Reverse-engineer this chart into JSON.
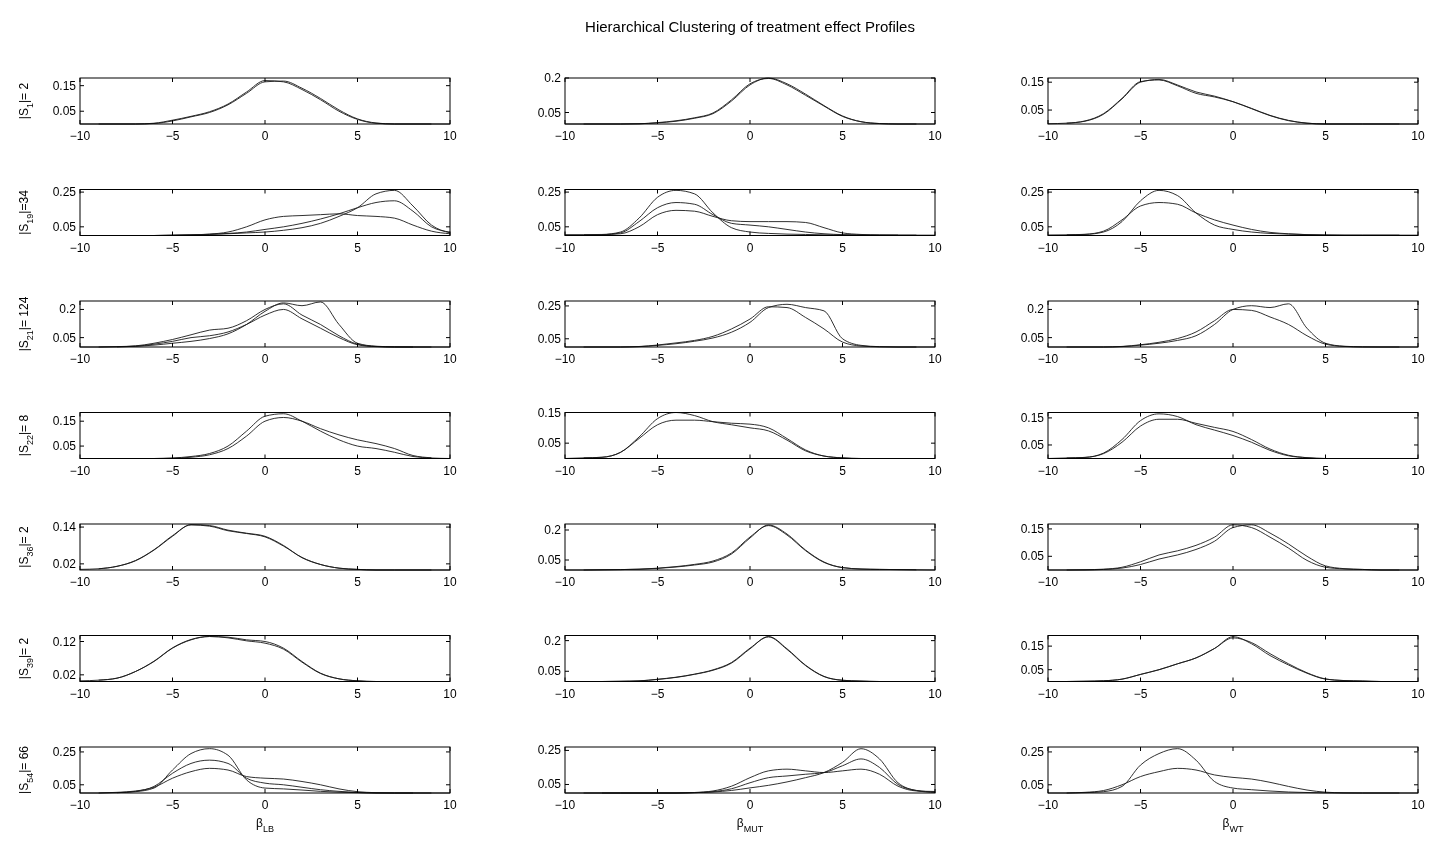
{
  "chart_data": [
    {
      "type": "line",
      "ylabel": "|S$_{1}$|= 2",
      "x": [
        -10,
        -9,
        -8,
        -7,
        -6,
        -5,
        -4,
        -3,
        -2,
        -1,
        0,
        1,
        2,
        3,
        4,
        5,
        6,
        7,
        8,
        9,
        10
      ],
      "xlim": [
        -10,
        10
      ],
      "xticks": [
        -10,
        -5,
        0,
        5,
        10
      ],
      "ylim": [
        0,
        0.18
      ],
      "yticks": [
        0.05,
        0.15
      ],
      "series": [
        {
          "color": "#1a1a1a",
          "values": [
            0,
            0,
            0,
            0,
            0.002,
            0.012,
            0.028,
            0.045,
            0.075,
            0.12,
            0.165,
            0.168,
            0.14,
            0.1,
            0.055,
            0.02,
            0.004,
            0,
            0,
            0,
            0
          ]
        },
        {
          "color": "#1a1a1a",
          "values": [
            null,
            0,
            0,
            0,
            0.003,
            0.015,
            0.03,
            0.048,
            0.078,
            0.125,
            0.17,
            0.165,
            0.135,
            0.095,
            0.05,
            0.018,
            0.003,
            0,
            0,
            0,
            null
          ]
        }
      ]
    },
    {
      "type": "line",
      "title": "Hierarchical Clustering of treatment effect Profiles",
      "x": [
        -10,
        -9,
        -8,
        -7,
        -6,
        -5,
        -4,
        -3,
        -2,
        -1,
        0,
        1,
        2,
        3,
        4,
        5,
        6,
        7,
        8,
        9,
        10
      ],
      "xlim": [
        -10,
        10
      ],
      "xticks": [
        -10,
        -5,
        0,
        5,
        10
      ],
      "ylim": [
        0,
        0.2
      ],
      "yticks": [
        0.05,
        0.2
      ],
      "series": [
        {
          "color": "#1a1a1a",
          "values": [
            0,
            0,
            0,
            0,
            0.001,
            0.005,
            0.012,
            0.025,
            0.045,
            0.1,
            0.17,
            0.2,
            0.175,
            0.13,
            0.08,
            0.035,
            0.01,
            0.002,
            0,
            0,
            0
          ]
        },
        {
          "color": "#1a1a1a",
          "values": [
            null,
            0,
            0,
            0,
            0.001,
            0.006,
            0.014,
            0.027,
            0.048,
            0.105,
            0.175,
            0.198,
            0.17,
            0.125,
            0.078,
            0.033,
            0.01,
            0.002,
            0,
            0,
            null
          ]
        }
      ]
    },
    {
      "type": "line",
      "x": [
        -10,
        -9,
        -8,
        -7,
        -6,
        -5,
        -4,
        -3,
        -2,
        -1,
        0,
        1,
        2,
        3,
        4,
        5,
        6,
        7,
        8,
        9,
        10
      ],
      "xlim": [
        -10,
        10
      ],
      "xticks": [
        -10,
        -5,
        0,
        5,
        10
      ],
      "ylim": [
        0,
        0.165
      ],
      "yticks": [
        0.05,
        0.15
      ],
      "series": [
        {
          "color": "#1a1a1a",
          "values": [
            0.001,
            0.003,
            0.01,
            0.035,
            0.09,
            0.15,
            0.16,
            0.14,
            0.115,
            0.1,
            0.08,
            0.055,
            0.03,
            0.012,
            0.003,
            0,
            0,
            0,
            0,
            0,
            0
          ]
        },
        {
          "color": "#1a1a1a",
          "values": [
            null,
            0.003,
            0.011,
            0.037,
            0.092,
            0.152,
            0.158,
            0.137,
            0.11,
            0.097,
            0.08,
            0.056,
            0.031,
            0.013,
            0.003,
            0,
            0,
            0,
            0,
            0,
            null
          ]
        }
      ]
    },
    {
      "type": "line",
      "ylabel": "|S$_{19}$|=34",
      "x": [
        -10,
        -9,
        -8,
        -7,
        -6,
        -5,
        -4,
        -3,
        -2,
        -1,
        0,
        1,
        2,
        3,
        4,
        5,
        6,
        7,
        8,
        9,
        10
      ],
      "xlim": [
        -10,
        10
      ],
      "xticks": [
        -10,
        -5,
        0,
        5,
        10
      ],
      "ylim": [
        0,
        0.265
      ],
      "yticks": [
        0.05,
        0.25
      ],
      "series": [
        {
          "color": "#1a1a1a",
          "values": [
            0,
            0,
            0,
            0,
            0,
            0.001,
            0.003,
            0.006,
            0.01,
            0.015,
            0.02,
            0.03,
            0.045,
            0.07,
            0.11,
            0.16,
            0.24,
            0.26,
            0.17,
            0.06,
            0.015
          ]
        },
        {
          "color": "#1a1a1a",
          "values": [
            null,
            0,
            0,
            0,
            0,
            0.001,
            0.003,
            0.007,
            0.012,
            0.02,
            0.035,
            0.05,
            0.07,
            0.095,
            0.125,
            0.16,
            0.19,
            0.2,
            0.14,
            0.05,
            0.02
          ]
        },
        {
          "color": "#1a1a1a",
          "values": [
            null,
            null,
            0,
            0,
            0,
            0.002,
            0.004,
            0.008,
            0.02,
            0.05,
            0.09,
            0.11,
            0.115,
            0.12,
            0.125,
            0.115,
            0.11,
            0.1,
            0.06,
            0.025,
            0.01
          ]
        }
      ]
    },
    {
      "type": "line",
      "x": [
        -10,
        -9,
        -8,
        -7,
        -6,
        -5,
        -4,
        -3,
        -2,
        -1,
        0,
        1,
        2,
        3,
        4,
        5,
        6,
        7,
        8,
        9,
        10
      ],
      "xlim": [
        -10,
        10
      ],
      "xticks": [
        -10,
        -5,
        0,
        5,
        10
      ],
      "ylim": [
        0,
        0.265
      ],
      "yticks": [
        0.05,
        0.25
      ],
      "series": [
        {
          "color": "#1a1a1a",
          "values": [
            0.005,
            0.005,
            0.006,
            0.02,
            0.1,
            0.22,
            0.26,
            0.24,
            0.13,
            0.045,
            0.02,
            0.012,
            0.008,
            0.006,
            0.004,
            0.003,
            0.002,
            0.002,
            0.002,
            0.002,
            0.002
          ]
        },
        {
          "color": "#1a1a1a",
          "values": [
            null,
            0.004,
            0.005,
            0.015,
            0.08,
            0.16,
            0.19,
            0.18,
            0.12,
            0.07,
            0.06,
            0.05,
            0.035,
            0.02,
            0.01,
            0.005,
            0.003,
            0.002,
            0.002,
            0.002,
            null
          ]
        },
        {
          "color": "#1a1a1a",
          "values": [
            null,
            null,
            0.005,
            0.01,
            0.05,
            0.12,
            0.145,
            0.14,
            0.11,
            0.085,
            0.08,
            0.08,
            0.08,
            0.075,
            0.045,
            0.015,
            0.006,
            0.003,
            0.002,
            null,
            null
          ]
        }
      ]
    },
    {
      "type": "line",
      "x": [
        -10,
        -9,
        -8,
        -7,
        -6,
        -5,
        -4,
        -3,
        -2,
        -1,
        0,
        1,
        2,
        3,
        4,
        5,
        6,
        7,
        8,
        9,
        10
      ],
      "xlim": [
        -10,
        10
      ],
      "xticks": [
        -10,
        -5,
        0,
        5,
        10
      ],
      "ylim": [
        0,
        0.265
      ],
      "yticks": [
        0.05,
        0.25
      ],
      "series": [
        {
          "color": "#1a1a1a",
          "values": [
            0.003,
            0.004,
            0.006,
            0.02,
            0.08,
            0.2,
            0.26,
            0.23,
            0.13,
            0.06,
            0.035,
            0.02,
            0.012,
            0.008,
            0.005,
            0.003,
            0.002,
            0.002,
            0.002,
            0.002,
            0.002
          ]
        },
        {
          "color": "#1a1a1a",
          "values": [
            null,
            0.004,
            0.007,
            0.025,
            0.09,
            0.17,
            0.19,
            0.18,
            0.13,
            0.09,
            0.06,
            0.035,
            0.018,
            0.01,
            0.005,
            0.003,
            0.002,
            0.002,
            0.002,
            0.002,
            null
          ]
        }
      ]
    },
    {
      "type": "line",
      "ylabel": "|S$_{21}$|= 124",
      "x": [
        -10,
        -9,
        -8,
        -7,
        -6,
        -5,
        -4,
        -3,
        -2,
        -1,
        0,
        1,
        2,
        3,
        4,
        5,
        6,
        7,
        8,
        9,
        10
      ],
      "xlim": [
        -10,
        10
      ],
      "xticks": [
        -10,
        -5,
        0,
        5,
        10
      ],
      "ylim": [
        0,
        0.245
      ],
      "yticks": [
        0.05,
        0.2
      ],
      "series": [
        {
          "color": "#1a1a1a",
          "values": [
            0,
            0,
            0.001,
            0.004,
            0.01,
            0.02,
            0.03,
            0.045,
            0.07,
            0.12,
            0.19,
            0.235,
            0.22,
            0.24,
            0.12,
            0.02,
            0.004,
            0.001,
            0,
            0,
            0
          ]
        },
        {
          "color": "#1a1a1a",
          "values": [
            null,
            0,
            0.002,
            0.006,
            0.02,
            0.04,
            0.065,
            0.09,
            0.1,
            0.14,
            0.2,
            0.23,
            0.17,
            0.12,
            0.06,
            0.015,
            0.003,
            0,
            0,
            0,
            null
          ]
        },
        {
          "color": "#1a1a1a",
          "values": [
            null,
            null,
            0.001,
            0.004,
            0.015,
            0.03,
            0.05,
            0.06,
            0.08,
            0.12,
            0.17,
            0.2,
            0.15,
            0.1,
            0.05,
            0.012,
            0.002,
            0,
            0,
            null,
            null
          ]
        }
      ]
    },
    {
      "type": "line",
      "x": [
        -10,
        -9,
        -8,
        -7,
        -6,
        -5,
        -4,
        -3,
        -2,
        -1,
        0,
        1,
        2,
        3,
        4,
        5,
        6,
        7,
        8,
        9,
        10
      ],
      "xlim": [
        -10,
        10
      ],
      "xticks": [
        -10,
        -5,
        0,
        5,
        10
      ],
      "ylim": [
        0,
        0.28
      ],
      "yticks": [
        0.05,
        0.25
      ],
      "series": [
        {
          "color": "#1a1a1a",
          "values": [
            0,
            0,
            0,
            0,
            0.002,
            0.01,
            0.02,
            0.035,
            0.055,
            0.09,
            0.15,
            0.24,
            0.26,
            0.24,
            0.22,
            0.05,
            0.01,
            0.002,
            0,
            0,
            0
          ]
        },
        {
          "color": "#1a1a1a",
          "values": [
            null,
            0,
            0,
            0,
            0.003,
            0.012,
            0.025,
            0.04,
            0.065,
            0.11,
            0.17,
            0.245,
            0.24,
            0.18,
            0.11,
            0.03,
            0.006,
            0.001,
            0,
            0,
            null
          ]
        }
      ]
    },
    {
      "type": "line",
      "x": [
        -10,
        -9,
        -8,
        -7,
        -6,
        -5,
        -4,
        -3,
        -2,
        -1,
        0,
        1,
        2,
        3,
        4,
        5,
        6,
        7,
        8,
        9,
        10
      ],
      "xlim": [
        -10,
        10
      ],
      "xticks": [
        -10,
        -5,
        0,
        5,
        10
      ],
      "ylim": [
        0,
        0.245
      ],
      "yticks": [
        0.05,
        0.2
      ],
      "series": [
        {
          "color": "#1a1a1a",
          "values": [
            0,
            0,
            0,
            0,
            0.002,
            0.01,
            0.02,
            0.035,
            0.06,
            0.12,
            0.2,
            0.22,
            0.21,
            0.23,
            0.1,
            0.02,
            0.004,
            0.001,
            0,
            0,
            0
          ]
        },
        {
          "color": "#1a1a1a",
          "values": [
            null,
            0,
            0,
            0,
            0.003,
            0.012,
            0.025,
            0.045,
            0.08,
            0.14,
            0.2,
            0.195,
            0.16,
            0.12,
            0.06,
            0.015,
            0.003,
            0,
            0,
            0,
            null
          ]
        }
      ]
    },
    {
      "type": "line",
      "ylabel": "|S$_{22}$|= 8",
      "x": [
        -10,
        -9,
        -8,
        -7,
        -6,
        -5,
        -4,
        -3,
        -2,
        -1,
        0,
        1,
        2,
        3,
        4,
        5,
        6,
        7,
        8,
        9,
        10
      ],
      "xlim": [
        -10,
        10
      ],
      "xticks": [
        -10,
        -5,
        0,
        5,
        10
      ],
      "ylim": [
        0,
        0.185
      ],
      "yticks": [
        0.05,
        0.15
      ],
      "series": [
        {
          "color": "#1a1a1a",
          "values": [
            0,
            0,
            0,
            0,
            0,
            0.002,
            0.008,
            0.02,
            0.05,
            0.11,
            0.17,
            0.18,
            0.15,
            0.11,
            0.075,
            0.05,
            0.04,
            0.025,
            0.008,
            0.002,
            0
          ]
        },
        {
          "color": "#1a1a1a",
          "values": [
            null,
            0,
            0,
            0,
            0,
            0.001,
            0.005,
            0.015,
            0.04,
            0.09,
            0.15,
            0.165,
            0.15,
            0.12,
            0.095,
            0.075,
            0.06,
            0.04,
            0.012,
            0.003,
            null
          ]
        }
      ]
    },
    {
      "type": "line",
      "x": [
        -10,
        -9,
        -8,
        -7,
        -6,
        -5,
        -4,
        -3,
        -2,
        -1,
        0,
        1,
        2,
        3,
        4,
        5,
        6,
        7,
        8,
        9,
        10
      ],
      "xlim": [
        -10,
        10
      ],
      "xticks": [
        -10,
        -5,
        0,
        5,
        10
      ],
      "ylim": [
        0,
        0.15
      ],
      "yticks": [
        0.05,
        0.15
      ],
      "series": [
        {
          "color": "#1a1a1a",
          "values": [
            0,
            0.002,
            0.004,
            0.02,
            0.07,
            0.13,
            0.15,
            0.14,
            0.12,
            0.11,
            0.1,
            0.09,
            0.06,
            0.025,
            0.008,
            0.002,
            0,
            0,
            0,
            0,
            0
          ]
        },
        {
          "color": "#1a1a1a",
          "values": [
            null,
            0.002,
            0.004,
            0.02,
            0.065,
            0.11,
            0.125,
            0.125,
            0.12,
            0.115,
            0.112,
            0.1,
            0.065,
            0.028,
            0.008,
            0.002,
            0,
            0,
            0,
            0,
            null
          ]
        }
      ]
    },
    {
      "type": "line",
      "x": [
        -10,
        -9,
        -8,
        -7,
        -6,
        -5,
        -4,
        -3,
        -2,
        -1,
        0,
        1,
        2,
        3,
        4,
        5,
        6,
        7,
        8,
        9,
        10
      ],
      "xlim": [
        -10,
        10
      ],
      "xticks": [
        -10,
        -5,
        0,
        5,
        10
      ],
      "ylim": [
        0,
        0.17
      ],
      "yticks": [
        0.05,
        0.15
      ],
      "series": [
        {
          "color": "#1a1a1a",
          "values": [
            0,
            0.002,
            0.004,
            0.02,
            0.07,
            0.14,
            0.165,
            0.155,
            0.125,
            0.105,
            0.085,
            0.06,
            0.03,
            0.01,
            0.003,
            0,
            0,
            0,
            0,
            0,
            0
          ]
        },
        {
          "color": "#1a1a1a",
          "values": [
            null,
            0.002,
            0.004,
            0.018,
            0.06,
            0.12,
            0.145,
            0.145,
            0.13,
            0.115,
            0.1,
            0.07,
            0.035,
            0.012,
            0.003,
            0,
            0,
            0,
            0,
            0,
            null
          ]
        }
      ]
    },
    {
      "type": "line",
      "ylabel": "|S$_{36}$|= 2",
      "x": [
        -10,
        -9,
        -8,
        -7,
        -6,
        -5,
        -4,
        -3,
        -2,
        -1,
        0,
        1,
        2,
        3,
        4,
        5,
        6,
        7,
        8,
        9,
        10
      ],
      "xlim": [
        -10,
        10
      ],
      "xticks": [
        -10,
        -5,
        0,
        5,
        10
      ],
      "ylim": [
        0,
        0.15
      ],
      "yticks": [
        0.02,
        0.14
      ],
      "series": [
        {
          "color": "#1a1a1a",
          "values": [
            0.002,
            0.004,
            0.012,
            0.03,
            0.065,
            0.11,
            0.148,
            0.145,
            0.13,
            0.12,
            0.11,
            0.08,
            0.04,
            0.018,
            0.006,
            0.002,
            0,
            0,
            0,
            0,
            0
          ]
        },
        {
          "color": "#1a1a1a",
          "values": [
            null,
            0.004,
            0.012,
            0.031,
            0.066,
            0.112,
            0.147,
            0.143,
            0.128,
            0.119,
            0.108,
            0.078,
            0.041,
            0.018,
            0.006,
            0.002,
            0,
            0,
            0,
            0,
            null
          ]
        }
      ]
    },
    {
      "type": "line",
      "x": [
        -10,
        -9,
        -8,
        -7,
        -6,
        -5,
        -4,
        -3,
        -2,
        -1,
        0,
        1,
        2,
        3,
        4,
        5,
        6,
        7,
        8,
        9,
        10
      ],
      "xlim": [
        -10,
        10
      ],
      "xticks": [
        -10,
        -5,
        0,
        5,
        10
      ],
      "ylim": [
        0,
        0.23
      ],
      "yticks": [
        0.05,
        0.2
      ],
      "series": [
        {
          "color": "#1a1a1a",
          "values": [
            0,
            0,
            0.001,
            0.002,
            0.004,
            0.008,
            0.015,
            0.025,
            0.04,
            0.08,
            0.16,
            0.225,
            0.18,
            0.1,
            0.04,
            0.012,
            0.005,
            0.003,
            0.002,
            0.001,
            0
          ]
        },
        {
          "color": "#1a1a1a",
          "values": [
            null,
            0,
            0.001,
            0.002,
            0.004,
            0.009,
            0.017,
            0.028,
            0.045,
            0.085,
            0.165,
            0.222,
            0.175,
            0.097,
            0.038,
            0.012,
            0.005,
            0.003,
            0.002,
            0.001,
            null
          ]
        }
      ]
    },
    {
      "type": "line",
      "x": [
        -10,
        -9,
        -8,
        -7,
        -6,
        -5,
        -4,
        -3,
        -2,
        -1,
        0,
        1,
        2,
        3,
        4,
        5,
        6,
        7,
        8,
        9,
        10
      ],
      "xlim": [
        -10,
        10
      ],
      "xticks": [
        -10,
        -5,
        0,
        5,
        10
      ],
      "ylim": [
        0,
        0.168
      ],
      "yticks": [
        0.05,
        0.15
      ],
      "series": [
        {
          "color": "#1a1a1a",
          "values": [
            0,
            0,
            0.001,
            0.003,
            0.01,
            0.03,
            0.055,
            0.07,
            0.09,
            0.12,
            0.165,
            0.155,
            0.12,
            0.08,
            0.035,
            0.01,
            0.004,
            0.002,
            0,
            0,
            0
          ]
        },
        {
          "color": "#1a1a1a",
          "values": [
            null,
            0,
            0,
            0.002,
            0.007,
            0.02,
            0.04,
            0.055,
            0.075,
            0.105,
            0.155,
            0.165,
            0.135,
            0.095,
            0.05,
            0.015,
            0.005,
            0.002,
            0,
            0,
            null
          ]
        }
      ]
    },
    {
      "type": "line",
      "ylabel": "|S$_{39}$|= 2",
      "x": [
        -10,
        -9,
        -8,
        -7,
        -6,
        -5,
        -4,
        -3,
        -2,
        -1,
        0,
        1,
        2,
        3,
        4,
        5,
        6,
        7,
        8,
        9,
        10
      ],
      "xlim": [
        -10,
        10
      ],
      "xticks": [
        -10,
        -5,
        0,
        5,
        10
      ],
      "ylim": [
        0,
        0.138
      ],
      "yticks": [
        0.02,
        0.12
      ],
      "series": [
        {
          "color": "#1a1a1a",
          "values": [
            0.002,
            0.004,
            0.01,
            0.03,
            0.06,
            0.1,
            0.125,
            0.135,
            0.133,
            0.125,
            0.12,
            0.1,
            0.06,
            0.025,
            0.008,
            0.002,
            0,
            0,
            0,
            0,
            0
          ]
        },
        {
          "color": "#1a1a1a",
          "values": [
            null,
            0.004,
            0.01,
            0.03,
            0.061,
            0.101,
            0.126,
            0.135,
            0.131,
            0.122,
            0.115,
            0.097,
            0.058,
            0.024,
            0.008,
            0.002,
            0,
            0,
            0,
            0,
            null
          ]
        }
      ]
    },
    {
      "type": "line",
      "x": [
        -10,
        -9,
        -8,
        -7,
        -6,
        -5,
        -4,
        -3,
        -2,
        -1,
        0,
        1,
        2,
        3,
        4,
        5,
        6,
        7,
        8,
        9,
        10
      ],
      "xlim": [
        -10,
        10
      ],
      "xticks": [
        -10,
        -5,
        0,
        5,
        10
      ],
      "ylim": [
        0,
        0.225
      ],
      "yticks": [
        0.05,
        0.2
      ],
      "series": [
        {
          "color": "#1a1a1a",
          "values": [
            0,
            0,
            0,
            0.001,
            0.003,
            0.01,
            0.02,
            0.035,
            0.055,
            0.09,
            0.16,
            0.22,
            0.16,
            0.08,
            0.025,
            0.006,
            0.002,
            0,
            0,
            0,
            0
          ]
        },
        {
          "color": "#1a1a1a",
          "values": [
            null,
            0,
            0,
            0.001,
            0.003,
            0.011,
            0.021,
            0.036,
            0.057,
            0.093,
            0.163,
            0.218,
            0.157,
            0.078,
            0.024,
            0.006,
            0.002,
            0,
            0,
            0,
            null
          ]
        }
      ]
    },
    {
      "type": "line",
      "x": [
        -10,
        -9,
        -8,
        -7,
        -6,
        -5,
        -4,
        -3,
        -2,
        -1,
        0,
        1,
        2,
        3,
        4,
        5,
        6,
        7,
        8,
        9,
        10
      ],
      "xlim": [
        -10,
        10
      ],
      "xticks": [
        -10,
        -5,
        0,
        5,
        10
      ],
      "ylim": [
        0,
        0.195
      ],
      "yticks": [
        0.05,
        0.15
      ],
      "series": [
        {
          "color": "#1a1a1a",
          "values": [
            0,
            0,
            0.001,
            0.003,
            0.01,
            0.03,
            0.05,
            0.075,
            0.1,
            0.14,
            0.19,
            0.16,
            0.11,
            0.07,
            0.035,
            0.01,
            0.004,
            0.002,
            0,
            0,
            0
          ]
        },
        {
          "color": "#1a1a1a",
          "values": [
            null,
            0,
            0.001,
            0.003,
            0.01,
            0.03,
            0.05,
            0.075,
            0.1,
            0.14,
            0.185,
            0.165,
            0.118,
            0.075,
            0.037,
            0.011,
            0.004,
            0.002,
            0,
            0,
            null
          ]
        }
      ]
    },
    {
      "type": "line",
      "ylabel": "|S$_{54}$|= 66",
      "xlabel": "β$_{LB}$",
      "x": [
        -10,
        -9,
        -8,
        -7,
        -6,
        -5,
        -4,
        -3,
        -2,
        -1,
        0,
        1,
        2,
        3,
        4,
        5,
        6,
        7,
        8,
        9,
        10
      ],
      "xlim": [
        -10,
        10
      ],
      "xticks": [
        -10,
        -5,
        0,
        5,
        10
      ],
      "ylim": [
        0,
        0.28
      ],
      "yticks": [
        0.05,
        0.25
      ],
      "series": [
        {
          "color": "#1a1a1a",
          "values": [
            0,
            0,
            0.002,
            0.008,
            0.03,
            0.14,
            0.24,
            0.27,
            0.23,
            0.08,
            0.03,
            0.025,
            0.018,
            0.01,
            0.005,
            0.002,
            0,
            0,
            0,
            0,
            0
          ]
        },
        {
          "color": "#1a1a1a",
          "values": [
            null,
            0,
            0.004,
            0.012,
            0.035,
            0.09,
            0.13,
            0.15,
            0.14,
            0.1,
            0.09,
            0.085,
            0.07,
            0.05,
            0.025,
            0.008,
            0.002,
            0,
            0,
            0,
            null
          ]
        },
        {
          "color": "#1a1a1a",
          "values": [
            null,
            null,
            0.002,
            0.01,
            0.04,
            0.12,
            0.18,
            0.2,
            0.18,
            0.09,
            0.06,
            0.05,
            0.035,
            0.02,
            0.01,
            0.003,
            0,
            0,
            0,
            null,
            null
          ]
        }
      ]
    },
    {
      "type": "line",
      "xlabel": "β$_{MUT}$",
      "x": [
        -10,
        -9,
        -8,
        -7,
        -6,
        -5,
        -4,
        -3,
        -2,
        -1,
        0,
        1,
        2,
        3,
        4,
        5,
        6,
        7,
        8,
        9,
        10
      ],
      "xlim": [
        -10,
        10
      ],
      "xticks": [
        -10,
        -5,
        0,
        5,
        10
      ],
      "ylim": [
        0,
        0.27
      ],
      "yticks": [
        0.05,
        0.25
      ],
      "series": [
        {
          "color": "#1a1a1a",
          "values": [
            0,
            0,
            0,
            0,
            0,
            0,
            0,
            0.002,
            0.006,
            0.015,
            0.03,
            0.045,
            0.065,
            0.09,
            0.12,
            0.18,
            0.26,
            0.2,
            0.06,
            0.015,
            0.006
          ]
        },
        {
          "color": "#1a1a1a",
          "values": [
            null,
            0,
            0,
            0,
            0,
            0,
            0,
            0.003,
            0.012,
            0.04,
            0.09,
            0.13,
            0.14,
            0.13,
            0.12,
            0.13,
            0.14,
            0.11,
            0.04,
            0.012,
            0.009
          ]
        },
        {
          "color": "#1a1a1a",
          "values": [
            null,
            null,
            0,
            0,
            0,
            0,
            0,
            0.002,
            0.008,
            0.025,
            0.06,
            0.09,
            0.1,
            0.11,
            0.12,
            0.16,
            0.2,
            0.15,
            0.05,
            0.014,
            0.003
          ]
        }
      ]
    },
    {
      "type": "line",
      "xlabel": "β$_{WT}$",
      "x": [
        -10,
        -9,
        -8,
        -7,
        -6,
        -5,
        -4,
        -3,
        -2,
        -1,
        0,
        1,
        2,
        3,
        4,
        5,
        6,
        7,
        8,
        9,
        10
      ],
      "xlim": [
        -10,
        10
      ],
      "xticks": [
        -10,
        -5,
        0,
        5,
        10
      ],
      "ylim": [
        0,
        0.28
      ],
      "yticks": [
        0.05,
        0.25
      ],
      "series": [
        {
          "color": "#1a1a1a",
          "values": [
            0,
            0,
            0.002,
            0.008,
            0.04,
            0.17,
            0.24,
            0.27,
            0.2,
            0.07,
            0.03,
            0.02,
            0.012,
            0.006,
            0.003,
            0.001,
            0,
            0,
            0,
            0,
            0
          ]
        },
        {
          "color": "#1a1a1a",
          "values": [
            null,
            0,
            0.004,
            0.015,
            0.05,
            0.1,
            0.13,
            0.15,
            0.14,
            0.11,
            0.095,
            0.085,
            0.065,
            0.04,
            0.018,
            0.005,
            0.001,
            0,
            0,
            0,
            null
          ]
        }
      ]
    }
  ]
}
